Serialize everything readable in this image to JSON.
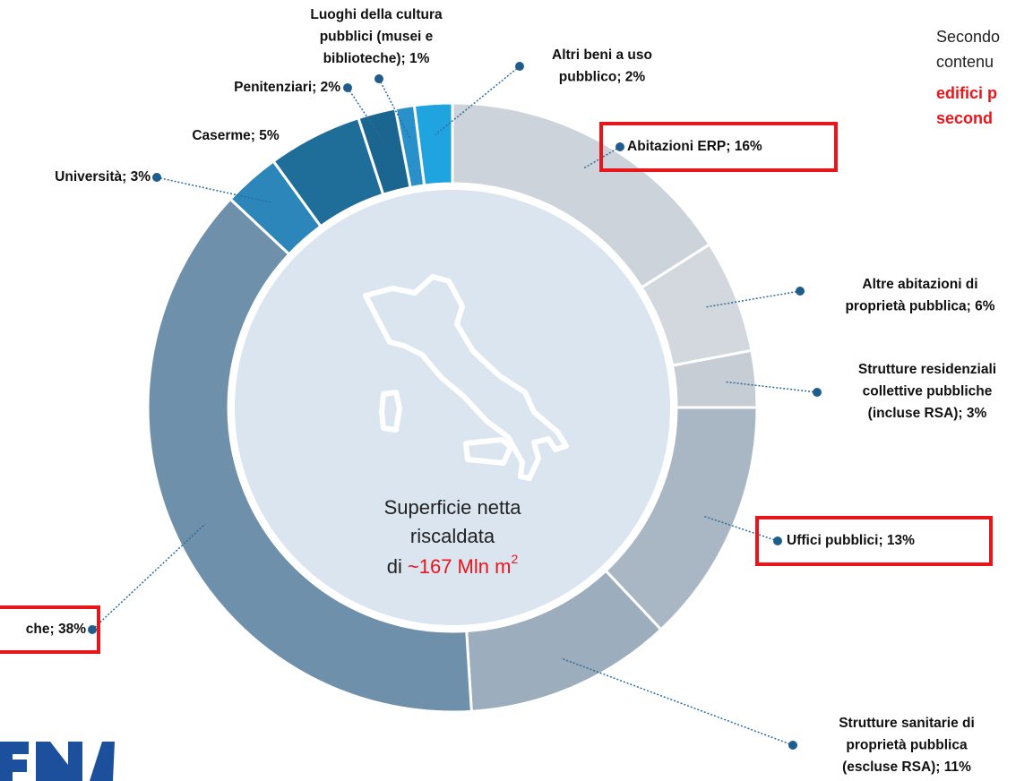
{
  "chart_data": {
    "type": "donut",
    "categories": [
      [
        "Abitazioni ERP; 16%"
      ],
      [
        "Altre abitazioni di",
        "proprietà pubblica; 6%"
      ],
      [
        "Strutture residenziali",
        "collettive pubbliche",
        "(incluse RSA); 3%"
      ],
      [
        "Uffici pubblici; 13%"
      ],
      [
        "Strutture sanitarie di",
        "proprietà pubblica",
        "(escluse RSA); 11%"
      ],
      [
        "che; 38%"
      ],
      [
        "Università; 3%"
      ],
      [
        "Caserme; 5%"
      ],
      [
        "Penitenziari; 2%"
      ],
      [
        "Luoghi della cultura",
        "pubblici (musei e",
        "biblioteche); 1%"
      ],
      [
        "Altri beni a uso",
        "pubblico; 2%"
      ]
    ],
    "values": [
      16,
      6,
      3,
      13,
      11,
      38,
      3,
      5,
      2,
      1,
      2
    ],
    "colors": [
      "#cdd3da",
      "#d3d8de",
      "#c6cdd5",
      "#a9b6c4",
      "#9cadbd",
      "#6f90aa",
      "#2c86ba",
      "#1f6d99",
      "#1b6691",
      "#2a90c9",
      "#20a4e0"
    ],
    "highlighted": [
      0,
      3,
      5
    ],
    "center": {
      "lines": [
        "Superficie netta",
        "riscaldata"
      ],
      "prefix": "di",
      "value": "~167 Mln m",
      "sup": "2"
    },
    "side_text": {
      "lines": [
        "Secondo",
        "contenu"
      ],
      "bold_lines": [
        "edifici p",
        "second"
      ]
    }
  }
}
